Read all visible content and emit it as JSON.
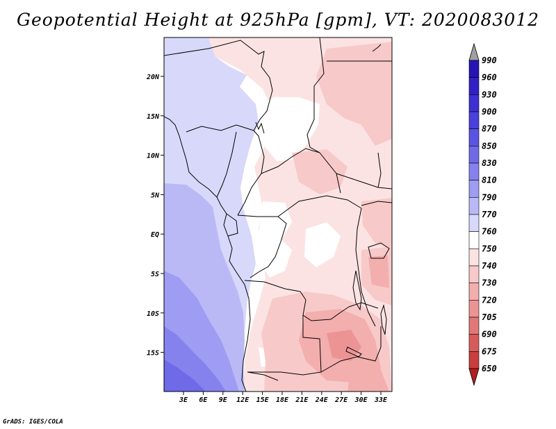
{
  "title": "Geopotential Height at 925hPa [gpm], VT: 2020083012",
  "footer": "GrADS: IGES/COLA",
  "map": {
    "lat_ticks": [
      "20N",
      "15N",
      "10N",
      "5N",
      "EQ",
      "5S",
      "10S",
      "15S"
    ],
    "lon_ticks": [
      "3E",
      "6E",
      "9E",
      "12E",
      "15E",
      "18E",
      "21E",
      "24E",
      "27E",
      "30E",
      "33E"
    ]
  },
  "colorbar": {
    "levels": [
      "990",
      "960",
      "930",
      "900",
      "870",
      "850",
      "830",
      "810",
      "790",
      "770",
      "760",
      "750",
      "740",
      "730",
      "720",
      "705",
      "690",
      "675",
      "650"
    ],
    "colors": {
      "above_max": "#a0a0a0",
      "bands": [
        "#1c0aa0",
        "#2614b4",
        "#3220c4",
        "#3d30d2",
        "#4a40dc",
        "#5a54e2",
        "#6e6ae8",
        "#8582ee",
        "#9e9df3",
        "#bab9f6",
        "#d8d8fa",
        "#ffffff",
        "#fce3e3",
        "#f8c9c9",
        "#f3aeae",
        "#ec9494",
        "#e27777",
        "#d75b5b",
        "#c93e3e",
        "#b21e1e"
      ]
    }
  }
}
